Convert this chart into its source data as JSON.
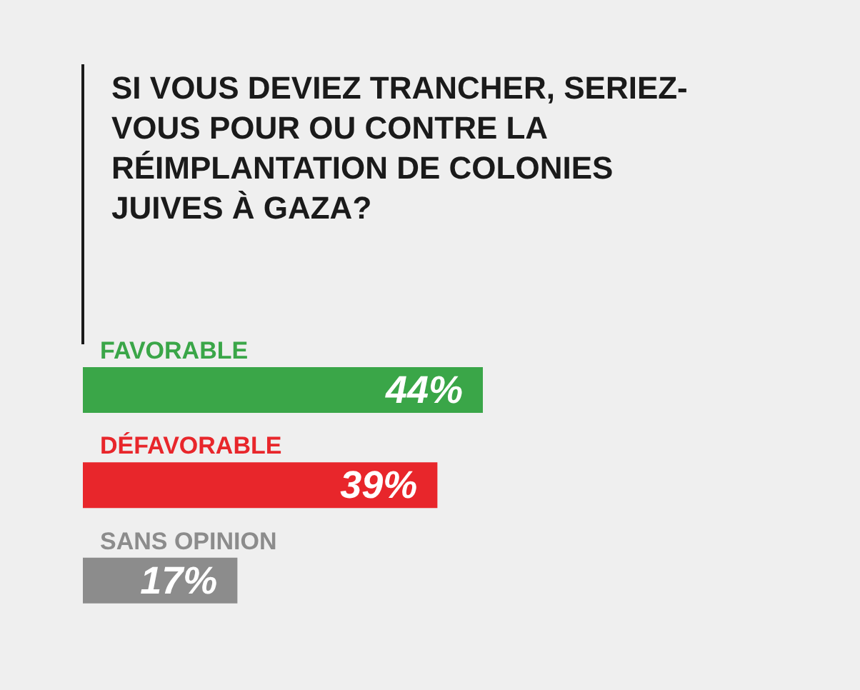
{
  "chart_data": {
    "type": "bar",
    "orientation": "horizontal",
    "title": "SI VOUS DEVIEZ TRANCHER, SERIEZ-VOUS POUR OU CONTRE LA RÉIMPLANTATION DE COLONIES JUIVES À GAZA?",
    "categories": [
      "FAVORABLE",
      "DÉFAVORABLE",
      "SANS OPINION"
    ],
    "values": [
      44,
      39,
      17
    ],
    "value_labels": [
      "44%",
      "39%",
      "17%"
    ],
    "colors": [
      "#3aa648",
      "#e8262b",
      "#8c8c8c"
    ]
  }
}
